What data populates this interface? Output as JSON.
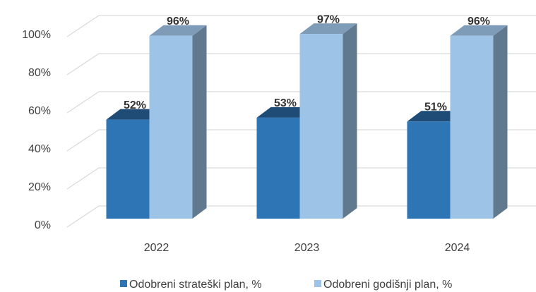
{
  "chart_data": {
    "type": "bar",
    "categories": [
      "2022",
      "2023",
      "2024"
    ],
    "series": [
      {
        "name": "Odobreni strateški plan, %",
        "color": "#2e75b6",
        "values": [
          52,
          53,
          51
        ],
        "value_labels": [
          "52%",
          "53%",
          "51%"
        ]
      },
      {
        "name": "Odobreni godišnji plan, %",
        "color": "#9dc3e6",
        "values": [
          96,
          97,
          96
        ],
        "value_labels": [
          "96%",
          "97%",
          "96%"
        ]
      }
    ],
    "ylim": [
      0,
      100
    ],
    "yticks": [
      {
        "value": 0,
        "label": "0%"
      },
      {
        "value": 20,
        "label": "20%"
      },
      {
        "value": 40,
        "label": "40%"
      },
      {
        "value": 60,
        "label": "60%"
      },
      {
        "value": 80,
        "label": "80%"
      },
      {
        "value": 100,
        "label": "100%"
      }
    ],
    "grid": true,
    "legend": "bottom"
  }
}
